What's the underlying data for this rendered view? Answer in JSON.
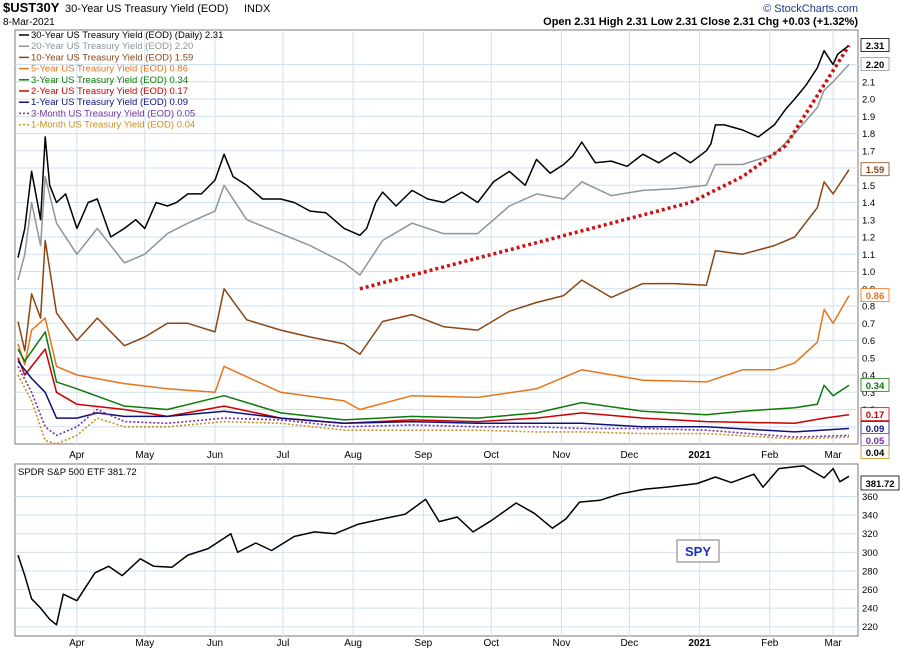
{
  "header": {
    "symbol": "$UST30Y",
    "description": "30-Year US Treasury Yield (EOD)",
    "exchange": "INDX",
    "date": "8-Mar-2021",
    "quote": "Open 2.31  High 2.31  Low 2.31  Close 2.31  Chg +0.03 (+1.32%)",
    "watermark": "© StockCharts.com"
  },
  "lower_panel": {
    "legend": "SPDR S&P 500 ETF 381.72",
    "price_tag": "381.72",
    "annotation": "SPY"
  },
  "colors": {
    "background": "#ffffff",
    "panel_border": "#7a7a7a",
    "grid": "#cfe0ee",
    "trendline": "#d01010",
    "annotation_text": "#1a2fc0"
  },
  "chart_data": [
    {
      "type": "line",
      "title": "30-Year US Treasury Yield (EOD)",
      "x_axis_months": [
        "Apr",
        "May",
        "Jun",
        "Jul",
        "Aug",
        "Sep",
        "Oct",
        "Nov",
        "Dec",
        "2021",
        "Feb",
        "Mar"
      ],
      "x_range": [
        "2020-03-06",
        "2021-03-08"
      ],
      "y_ticks": [
        0.1,
        0.2,
        0.3,
        0.4,
        0.5,
        0.6,
        0.7,
        0.8,
        0.9,
        1.0,
        1.1,
        1.2,
        1.3,
        1.4,
        1.5,
        1.6,
        1.7,
        1.8,
        1.9,
        2.0,
        2.1,
        2.2
      ],
      "ylim": [
        0.0,
        2.4
      ],
      "grid": true,
      "legend_position": "top-left",
      "series": [
        {
          "name": "30-Year US Treasury Yield (EOD) (Daily) 2.31",
          "last_label": "2.31",
          "color": "#000000",
          "dash": "solid",
          "x": [
            "2020-03-06",
            "2020-03-09",
            "2020-03-12",
            "2020-03-16",
            "2020-03-18",
            "2020-03-20",
            "2020-03-23",
            "2020-03-27",
            "2020-04-01",
            "2020-04-06",
            "2020-04-10",
            "2020-04-16",
            "2020-04-22",
            "2020-04-27",
            "2020-05-01",
            "2020-05-06",
            "2020-05-11",
            "2020-05-15",
            "2020-05-20",
            "2020-05-26",
            "2020-06-01",
            "2020-06-05",
            "2020-06-09",
            "2020-06-15",
            "2020-06-22",
            "2020-06-30",
            "2020-07-06",
            "2020-07-13",
            "2020-07-20",
            "2020-07-28",
            "2020-08-04",
            "2020-08-07",
            "2020-08-11",
            "2020-08-14",
            "2020-08-20",
            "2020-08-27",
            "2020-09-03",
            "2020-09-10",
            "2020-09-18",
            "2020-09-25",
            "2020-10-02",
            "2020-10-09",
            "2020-10-16",
            "2020-10-21",
            "2020-10-27",
            "2020-11-02",
            "2020-11-06",
            "2020-11-10",
            "2020-11-16",
            "2020-11-23",
            "2020-11-30",
            "2020-12-07",
            "2020-12-14",
            "2020-12-21",
            "2020-12-28",
            "2021-01-04",
            "2021-01-06",
            "2021-01-08",
            "2021-01-12",
            "2021-01-20",
            "2021-01-27",
            "2021-02-03",
            "2021-02-08",
            "2021-02-12",
            "2021-02-17",
            "2021-02-22",
            "2021-02-25",
            "2021-03-01",
            "2021-03-03",
            "2021-03-08"
          ],
          "y": [
            1.08,
            1.25,
            1.58,
            1.3,
            1.78,
            1.5,
            1.4,
            1.45,
            1.25,
            1.4,
            1.42,
            1.2,
            1.25,
            1.3,
            1.25,
            1.4,
            1.38,
            1.4,
            1.45,
            1.45,
            1.53,
            1.68,
            1.55,
            1.5,
            1.42,
            1.42,
            1.4,
            1.35,
            1.34,
            1.25,
            1.21,
            1.25,
            1.4,
            1.46,
            1.38,
            1.47,
            1.42,
            1.4,
            1.46,
            1.4,
            1.52,
            1.58,
            1.5,
            1.65,
            1.57,
            1.62,
            1.67,
            1.75,
            1.63,
            1.64,
            1.61,
            1.68,
            1.63,
            1.69,
            1.63,
            1.7,
            1.74,
            1.85,
            1.85,
            1.82,
            1.78,
            1.85,
            1.94,
            2.0,
            2.08,
            2.18,
            2.28,
            2.2,
            2.26,
            2.31
          ]
        },
        {
          "name": "20-Year US Treasury Yield (EOD) 2.20",
          "last_label": "2.20",
          "color": "#8c969c",
          "dash": "solid",
          "x": [
            "2020-03-06",
            "2020-03-09",
            "2020-03-12",
            "2020-03-16",
            "2020-03-18",
            "2020-03-23",
            "2020-04-01",
            "2020-04-10",
            "2020-04-22",
            "2020-05-01",
            "2020-05-11",
            "2020-05-20",
            "2020-06-01",
            "2020-06-05",
            "2020-06-15",
            "2020-06-30",
            "2020-07-13",
            "2020-07-28",
            "2020-08-04",
            "2020-08-14",
            "2020-08-27",
            "2020-09-10",
            "2020-09-25",
            "2020-10-09",
            "2020-10-21",
            "2020-11-02",
            "2020-11-10",
            "2020-11-23",
            "2020-12-07",
            "2020-12-21",
            "2021-01-04",
            "2021-01-08",
            "2021-01-20",
            "2021-02-03",
            "2021-02-12",
            "2021-02-22",
            "2021-02-25",
            "2021-03-01",
            "2021-03-08"
          ],
          "y": [
            0.95,
            1.1,
            1.4,
            1.15,
            1.55,
            1.28,
            1.1,
            1.25,
            1.05,
            1.1,
            1.22,
            1.28,
            1.35,
            1.5,
            1.3,
            1.22,
            1.15,
            1.05,
            0.98,
            1.18,
            1.28,
            1.22,
            1.22,
            1.38,
            1.45,
            1.42,
            1.52,
            1.44,
            1.47,
            1.48,
            1.5,
            1.62,
            1.62,
            1.68,
            1.8,
            1.95,
            2.05,
            2.1,
            2.2
          ]
        },
        {
          "name": "10-Year US Treasury Yield (EOD) 1.59",
          "last_label": "1.59",
          "color": "#8b4513",
          "dash": "solid",
          "x": [
            "2020-03-06",
            "2020-03-09",
            "2020-03-12",
            "2020-03-16",
            "2020-03-18",
            "2020-03-23",
            "2020-04-01",
            "2020-04-10",
            "2020-04-22",
            "2020-05-01",
            "2020-05-11",
            "2020-05-20",
            "2020-06-01",
            "2020-06-05",
            "2020-06-15",
            "2020-06-30",
            "2020-07-13",
            "2020-07-28",
            "2020-08-04",
            "2020-08-14",
            "2020-08-27",
            "2020-09-10",
            "2020-09-25",
            "2020-10-09",
            "2020-10-21",
            "2020-11-02",
            "2020-11-10",
            "2020-11-23",
            "2020-12-07",
            "2020-12-21",
            "2021-01-04",
            "2021-01-08",
            "2021-01-20",
            "2021-02-03",
            "2021-02-12",
            "2021-02-22",
            "2021-02-25",
            "2021-03-01",
            "2021-03-08"
          ],
          "y": [
            0.71,
            0.54,
            0.87,
            0.73,
            1.18,
            0.76,
            0.6,
            0.73,
            0.57,
            0.62,
            0.7,
            0.7,
            0.65,
            0.9,
            0.72,
            0.66,
            0.62,
            0.58,
            0.52,
            0.71,
            0.75,
            0.68,
            0.66,
            0.77,
            0.82,
            0.86,
            0.95,
            0.85,
            0.93,
            0.93,
            0.92,
            1.12,
            1.1,
            1.15,
            1.2,
            1.37,
            1.52,
            1.45,
            1.59
          ]
        },
        {
          "name": "5-Year US Treasury Yield (EOD) 0.86",
          "last_label": "0.86",
          "color": "#e8741a",
          "dash": "solid",
          "x": [
            "2020-03-06",
            "2020-03-09",
            "2020-03-12",
            "2020-03-18",
            "2020-03-23",
            "2020-04-01",
            "2020-04-22",
            "2020-05-11",
            "2020-06-01",
            "2020-06-05",
            "2020-06-30",
            "2020-07-28",
            "2020-08-04",
            "2020-08-27",
            "2020-09-25",
            "2020-10-21",
            "2020-11-10",
            "2020-12-07",
            "2021-01-04",
            "2021-01-20",
            "2021-02-03",
            "2021-02-12",
            "2021-02-22",
            "2021-02-25",
            "2021-03-01",
            "2021-03-08"
          ],
          "y": [
            0.58,
            0.46,
            0.66,
            0.73,
            0.45,
            0.4,
            0.35,
            0.32,
            0.3,
            0.45,
            0.3,
            0.25,
            0.2,
            0.28,
            0.27,
            0.32,
            0.43,
            0.37,
            0.36,
            0.43,
            0.43,
            0.47,
            0.59,
            0.78,
            0.7,
            0.86
          ]
        },
        {
          "name": "3-Year US Treasury Yield (EOD) 0.34",
          "last_label": "0.34",
          "color": "#0c7a0c",
          "dash": "solid",
          "x": [
            "2020-03-06",
            "2020-03-09",
            "2020-03-18",
            "2020-03-23",
            "2020-04-01",
            "2020-04-22",
            "2020-05-11",
            "2020-06-05",
            "2020-06-30",
            "2020-07-28",
            "2020-08-27",
            "2020-09-25",
            "2020-10-21",
            "2020-11-10",
            "2020-12-07",
            "2021-01-04",
            "2021-01-20",
            "2021-02-12",
            "2021-02-22",
            "2021-02-25",
            "2021-03-01",
            "2021-03-08"
          ],
          "y": [
            0.55,
            0.48,
            0.65,
            0.36,
            0.32,
            0.22,
            0.2,
            0.28,
            0.18,
            0.14,
            0.16,
            0.15,
            0.18,
            0.24,
            0.19,
            0.17,
            0.19,
            0.21,
            0.23,
            0.34,
            0.28,
            0.34
          ]
        },
        {
          "name": "2-Year US Treasury Yield (EOD) 0.17",
          "last_label": "0.17",
          "color": "#cc0000",
          "dash": "solid",
          "x": [
            "2020-03-06",
            "2020-03-09",
            "2020-03-18",
            "2020-03-23",
            "2020-04-01",
            "2020-04-22",
            "2020-05-11",
            "2020-06-05",
            "2020-06-30",
            "2020-07-28",
            "2020-08-27",
            "2020-09-25",
            "2020-10-21",
            "2020-11-10",
            "2020-12-07",
            "2021-01-04",
            "2021-02-12",
            "2021-02-25",
            "2021-03-08"
          ],
          "y": [
            0.5,
            0.4,
            0.55,
            0.3,
            0.23,
            0.2,
            0.16,
            0.22,
            0.15,
            0.12,
            0.14,
            0.13,
            0.15,
            0.18,
            0.15,
            0.13,
            0.12,
            0.15,
            0.17
          ]
        },
        {
          "name": "1-Year US Treasury Yield (EOD) 0.09",
          "last_label": "0.09",
          "color": "#10107a",
          "dash": "solid",
          "x": [
            "2020-03-06",
            "2020-03-12",
            "2020-03-18",
            "2020-03-23",
            "2020-04-01",
            "2020-04-10",
            "2020-04-22",
            "2020-05-11",
            "2020-06-05",
            "2020-06-30",
            "2020-07-28",
            "2020-08-27",
            "2020-09-25",
            "2020-10-21",
            "2020-11-10",
            "2020-12-07",
            "2021-01-04",
            "2021-02-12",
            "2021-03-08"
          ],
          "y": [
            0.48,
            0.38,
            0.3,
            0.15,
            0.15,
            0.18,
            0.16,
            0.16,
            0.19,
            0.15,
            0.12,
            0.13,
            0.12,
            0.12,
            0.12,
            0.1,
            0.1,
            0.07,
            0.09
          ]
        },
        {
          "name": "3-Month US Treasury Yield (EOD) 0.05",
          "last_label": "0.05",
          "color": "#7030a0",
          "dash": "dot",
          "x": [
            "2020-03-06",
            "2020-03-12",
            "2020-03-18",
            "2020-03-23",
            "2020-04-01",
            "2020-04-10",
            "2020-04-22",
            "2020-05-11",
            "2020-06-05",
            "2020-06-30",
            "2020-07-28",
            "2020-08-27",
            "2020-09-25",
            "2020-10-21",
            "2020-11-10",
            "2020-12-07",
            "2021-01-04",
            "2021-02-12",
            "2021-03-08"
          ],
          "y": [
            0.45,
            0.3,
            0.1,
            0.05,
            0.1,
            0.2,
            0.13,
            0.12,
            0.15,
            0.14,
            0.1,
            0.11,
            0.1,
            0.1,
            0.09,
            0.09,
            0.08,
            0.04,
            0.05
          ]
        },
        {
          "name": "1-Month US Treasury Yield (EOD) 0.04",
          "last_label": "0.04",
          "color": "#c89020",
          "dash": "dot",
          "x": [
            "2020-03-06",
            "2020-03-12",
            "2020-03-18",
            "2020-03-23",
            "2020-04-01",
            "2020-04-10",
            "2020-04-22",
            "2020-05-11",
            "2020-06-05",
            "2020-06-30",
            "2020-07-28",
            "2020-08-27",
            "2020-09-25",
            "2020-10-21",
            "2020-11-10",
            "2020-12-07",
            "2021-01-04",
            "2021-02-12",
            "2021-03-08"
          ],
          "y": [
            0.4,
            0.25,
            0.02,
            0.0,
            0.05,
            0.15,
            0.1,
            0.1,
            0.13,
            0.12,
            0.08,
            0.08,
            0.08,
            0.07,
            0.07,
            0.06,
            0.06,
            0.03,
            0.04
          ]
        }
      ],
      "trendline": {
        "color": "#d01010",
        "x": [
          "2020-08-04",
          "2020-12-28",
          "2021-01-20",
          "2021-02-08",
          "2021-03-08"
        ],
        "y": [
          0.9,
          1.4,
          1.55,
          1.73,
          2.31
        ]
      }
    },
    {
      "type": "line",
      "title": "SPDR S&P 500 ETF",
      "x_axis_months": [
        "Apr",
        "May",
        "Jun",
        "Jul",
        "Aug",
        "Sep",
        "Oct",
        "Nov",
        "Dec",
        "2021",
        "Feb",
        "Mar"
      ],
      "x_range": [
        "2020-03-06",
        "2021-03-08"
      ],
      "y_ticks": [
        220,
        240,
        260,
        280,
        300,
        320,
        340,
        360
      ],
      "ylim": [
        210,
        395
      ],
      "grid": true,
      "legend_position": "top-left",
      "series": [
        {
          "name": "SPDR S&P 500 ETF 381.72",
          "last_label": "381.72",
          "color": "#000000",
          "dash": "solid",
          "x": [
            "2020-03-06",
            "2020-03-09",
            "2020-03-12",
            "2020-03-16",
            "2020-03-20",
            "2020-03-23",
            "2020-03-26",
            "2020-04-01",
            "2020-04-09",
            "2020-04-15",
            "2020-04-21",
            "2020-04-29",
            "2020-05-05",
            "2020-05-13",
            "2020-05-20",
            "2020-05-29",
            "2020-06-08",
            "2020-06-11",
            "2020-06-19",
            "2020-06-26",
            "2020-07-06",
            "2020-07-15",
            "2020-07-24",
            "2020-08-03",
            "2020-08-14",
            "2020-08-24",
            "2020-09-02",
            "2020-09-08",
            "2020-09-16",
            "2020-09-23",
            "2020-10-01",
            "2020-10-12",
            "2020-10-20",
            "2020-10-28",
            "2020-11-03",
            "2020-11-09",
            "2020-11-18",
            "2020-11-27",
            "2020-12-08",
            "2020-12-17",
            "2020-12-31",
            "2021-01-08",
            "2021-01-15",
            "2021-01-25",
            "2021-01-29",
            "2021-02-05",
            "2021-02-12",
            "2021-02-16",
            "2021-02-25",
            "2021-03-01",
            "2021-03-04",
            "2021-03-08"
          ],
          "y": [
            297,
            275,
            250,
            240,
            228,
            222,
            255,
            248,
            278,
            285,
            275,
            293,
            285,
            284,
            297,
            304,
            320,
            300,
            310,
            302,
            317,
            322,
            320,
            330,
            336,
            341,
            357,
            333,
            338,
            322,
            334,
            353,
            342,
            326,
            336,
            354,
            356,
            363,
            368,
            370,
            374,
            381,
            375,
            384,
            370,
            390,
            392,
            393,
            380,
            390,
            376,
            381.72
          ]
        }
      ]
    }
  ]
}
